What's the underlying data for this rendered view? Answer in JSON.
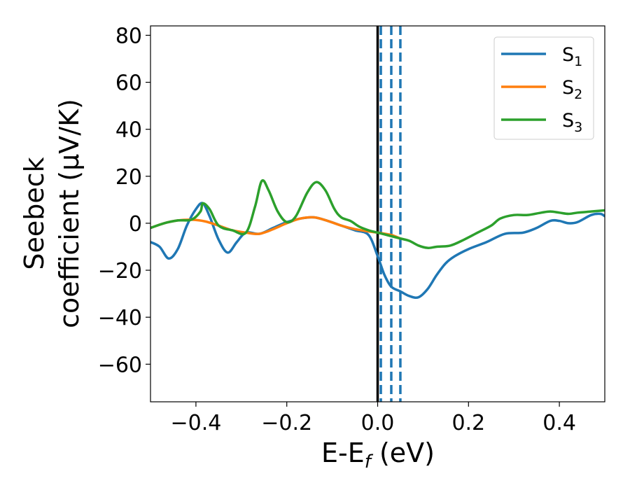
{
  "chart_data": {
    "type": "line",
    "title": "",
    "xlabel": {
      "main": "E-E",
      "sub": "f",
      "unit": " (eV)"
    },
    "ylabel": {
      "line1": "Seebeck",
      "line2": "coefficient  (μV/K)"
    },
    "xlim": [
      -0.5,
      0.5
    ],
    "ylim": [
      -76,
      84
    ],
    "xticks": [
      -0.4,
      -0.2,
      0.0,
      0.2,
      0.4
    ],
    "xtick_labels": [
      "−0.4",
      "−0.2",
      "0.0",
      "0.2",
      "0.4"
    ],
    "yticks": [
      -60,
      -40,
      -20,
      0,
      20,
      40,
      60,
      80
    ],
    "ytick_labels": [
      "−60",
      "−40",
      "−20",
      "0",
      "20",
      "40",
      "60",
      "80"
    ],
    "grid": false,
    "legend_position": "top-right",
    "vertical_lines": [
      {
        "x": 0.0,
        "style": "solid",
        "color": "#000000"
      },
      {
        "x": 0.007,
        "style": "dashed",
        "color": "#1f77b4"
      },
      {
        "x": 0.03,
        "style": "dashed",
        "color": "#1f77b4"
      },
      {
        "x": 0.05,
        "style": "dashed",
        "color": "#1f77b4"
      }
    ],
    "series": [
      {
        "name": "S",
        "sub": "1",
        "color": "#1f77b4",
        "points": [
          [
            -0.5,
            -8
          ],
          [
            -0.48,
            -10
          ],
          [
            -0.46,
            -15
          ],
          [
            -0.44,
            -11
          ],
          [
            -0.42,
            -1
          ],
          [
            -0.4,
            6
          ],
          [
            -0.385,
            8.5
          ],
          [
            -0.37,
            3
          ],
          [
            -0.35,
            -7
          ],
          [
            -0.33,
            -12.5
          ],
          [
            -0.31,
            -8
          ],
          [
            -0.29,
            -4
          ],
          [
            -0.26,
            -4.5
          ],
          [
            -0.23,
            -2
          ],
          [
            -0.2,
            0.5
          ],
          [
            -0.17,
            2
          ],
          [
            -0.14,
            2.5
          ],
          [
            -0.11,
            1
          ],
          [
            -0.08,
            -1
          ],
          [
            -0.05,
            -3
          ],
          [
            -0.02,
            -5
          ],
          [
            0.0,
            -14
          ],
          [
            0.015,
            -22
          ],
          [
            0.03,
            -27
          ],
          [
            0.05,
            -29
          ],
          [
            0.07,
            -31
          ],
          [
            0.09,
            -31.5
          ],
          [
            0.11,
            -28
          ],
          [
            0.13,
            -22
          ],
          [
            0.15,
            -17
          ],
          [
            0.17,
            -14
          ],
          [
            0.2,
            -11
          ],
          [
            0.24,
            -8
          ],
          [
            0.28,
            -4.5
          ],
          [
            0.32,
            -4
          ],
          [
            0.35,
            -2
          ],
          [
            0.38,
            1
          ],
          [
            0.4,
            1
          ],
          [
            0.42,
            0
          ],
          [
            0.44,
            0.5
          ],
          [
            0.47,
            3.5
          ],
          [
            0.49,
            4
          ],
          [
            0.5,
            3
          ]
        ]
      },
      {
        "name": "S",
        "sub": "2",
        "color": "#ff7f0e",
        "points": [
          [
            -0.5,
            -2
          ],
          [
            -0.47,
            0
          ],
          [
            -0.44,
            1.2
          ],
          [
            -0.41,
            1.5
          ],
          [
            -0.38,
            0.8
          ],
          [
            -0.35,
            -1
          ],
          [
            -0.32,
            -3
          ],
          [
            -0.29,
            -4
          ],
          [
            -0.26,
            -4.5
          ],
          [
            -0.23,
            -2.5
          ],
          [
            -0.2,
            0
          ],
          [
            -0.17,
            2
          ],
          [
            -0.14,
            2.5
          ],
          [
            -0.11,
            1
          ],
          [
            -0.08,
            -1
          ],
          [
            -0.05,
            -2.5
          ],
          [
            -0.02,
            -3.5
          ],
          [
            0.0,
            -4
          ],
          [
            0.03,
            -5
          ],
          [
            0.05,
            -6.5
          ]
        ]
      },
      {
        "name": "S",
        "sub": "3",
        "color": "#2ca02c",
        "points": [
          [
            -0.5,
            -2
          ],
          [
            -0.47,
            0
          ],
          [
            -0.44,
            1.2
          ],
          [
            -0.41,
            1.5
          ],
          [
            -0.39,
            5
          ],
          [
            -0.385,
            8.5
          ],
          [
            -0.37,
            6
          ],
          [
            -0.35,
            -1
          ],
          [
            -0.32,
            -3
          ],
          [
            -0.29,
            -4
          ],
          [
            -0.27,
            7
          ],
          [
            -0.255,
            18
          ],
          [
            -0.24,
            14
          ],
          [
            -0.22,
            5
          ],
          [
            -0.2,
            0.5
          ],
          [
            -0.18,
            3
          ],
          [
            -0.155,
            13
          ],
          [
            -0.135,
            17.5
          ],
          [
            -0.115,
            14
          ],
          [
            -0.095,
            6
          ],
          [
            -0.08,
            2.5
          ],
          [
            -0.06,
            1
          ],
          [
            -0.04,
            -1.5
          ],
          [
            -0.02,
            -3
          ],
          [
            0.0,
            -4
          ],
          [
            0.03,
            -5.5
          ],
          [
            0.05,
            -6.5
          ],
          [
            0.07,
            -7.5
          ],
          [
            0.09,
            -9.5
          ],
          [
            0.11,
            -10.5
          ],
          [
            0.13,
            -10
          ],
          [
            0.16,
            -9.5
          ],
          [
            0.19,
            -7
          ],
          [
            0.22,
            -4
          ],
          [
            0.25,
            -1
          ],
          [
            0.27,
            2
          ],
          [
            0.3,
            3.5
          ],
          [
            0.33,
            3.5
          ],
          [
            0.36,
            4.5
          ],
          [
            0.38,
            5
          ],
          [
            0.4,
            4.5
          ],
          [
            0.42,
            4
          ],
          [
            0.44,
            4.5
          ],
          [
            0.47,
            5
          ],
          [
            0.5,
            5.5
          ]
        ]
      }
    ]
  }
}
